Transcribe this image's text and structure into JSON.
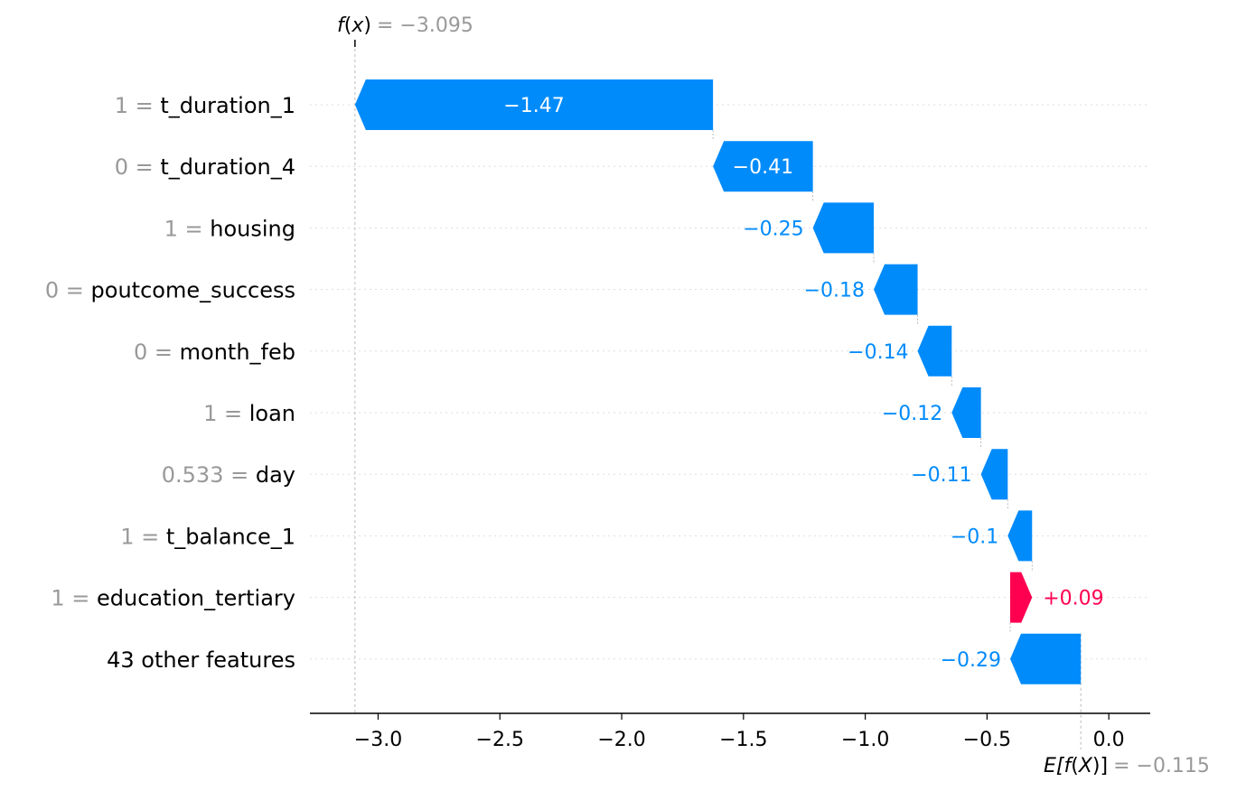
{
  "chart_data": {
    "type": "waterfall",
    "base": {
      "label_math": "E[f(X)]",
      "label_parts": [
        "E[",
        "f",
        "(",
        "X",
        ")]"
      ],
      "value": -0.115,
      "value_text": "= −0.115"
    },
    "final": {
      "label_parts": [
        "f",
        "(",
        "x",
        ")"
      ],
      "value": -3.095,
      "value_text": "= −3.095"
    },
    "features": [
      {
        "value_text": "1",
        "name": "t_duration_1",
        "shap": -1.47,
        "shap_text": "−1.47"
      },
      {
        "value_text": "0",
        "name": "t_duration_4",
        "shap": -0.41,
        "shap_text": "−0.41"
      },
      {
        "value_text": "1",
        "name": "housing",
        "shap": -0.25,
        "shap_text": "−0.25"
      },
      {
        "value_text": "0",
        "name": "poutcome_success",
        "shap": -0.18,
        "shap_text": "−0.18"
      },
      {
        "value_text": "0",
        "name": "month_feb",
        "shap": -0.14,
        "shap_text": "−0.14"
      },
      {
        "value_text": "1",
        "name": "loan",
        "shap": -0.12,
        "shap_text": "−0.12"
      },
      {
        "value_text": "0.533",
        "name": "day",
        "shap": -0.11,
        "shap_text": "−0.11"
      },
      {
        "value_text": "1",
        "name": "t_balance_1",
        "shap": -0.1,
        "shap_text": "−0.1"
      },
      {
        "value_text": "1",
        "name": "education_tertiary",
        "shap": 0.09,
        "shap_text": "+0.09"
      },
      {
        "value_text": "",
        "name": "43 other features",
        "shap": -0.29,
        "shap_text": "−0.29"
      }
    ],
    "xticks": [
      -3.0,
      -2.5,
      -2.0,
      -1.5,
      -1.0,
      -0.5,
      0.0
    ],
    "xtick_labels": [
      "−3.0",
      "−2.5",
      "−2.0",
      "−1.5",
      "−1.0",
      "−0.5",
      "0.0"
    ],
    "xlim": [
      -3.28,
      0.17
    ],
    "colors": {
      "negative": "#008bfb",
      "positive": "#ff0051",
      "muted": "#999999",
      "text": "#000000",
      "grid": "#cccccc"
    }
  }
}
